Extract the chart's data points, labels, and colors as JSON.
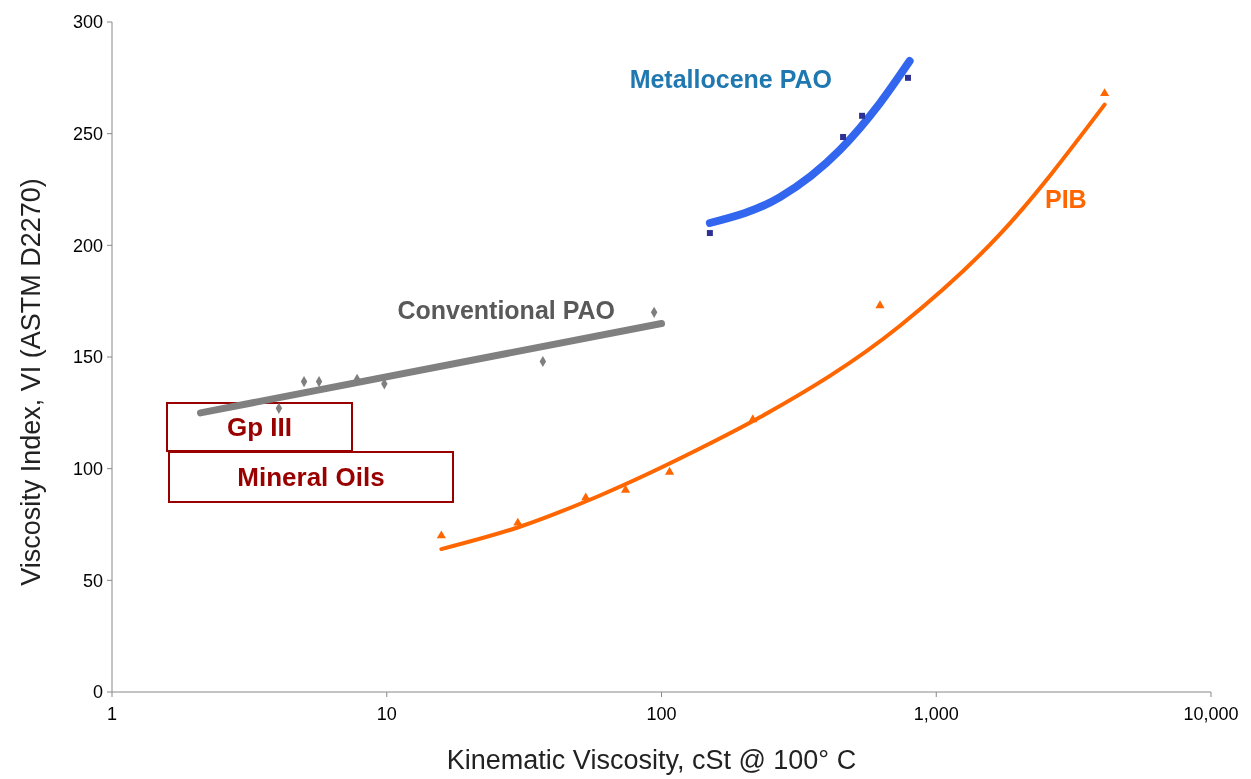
{
  "chart_data": {
    "type": "scatter",
    "xlabel": "Kinematic Viscosity, cSt @ 100° C",
    "ylabel": "Viscosity Index, VI (ASTM D2270)",
    "log": "x",
    "xlim": [
      1,
      10000
    ],
    "xticks": [
      1,
      10,
      100,
      {
        "value": 1000,
        "label": "1,000"
      },
      {
        "value": 10000,
        "label": "10,000"
      }
    ],
    "ylim": [
      0,
      300
    ],
    "yticks": [
      0,
      50,
      100,
      150,
      200,
      250,
      300
    ],
    "grid": false,
    "legend": false,
    "series": [
      {
        "type": "line",
        "color": "#3366ee",
        "marker": "none",
        "x": [
          150,
          270,
          446,
          624,
          800
        ],
        "values": [
          210,
          221.6,
          242.7,
          263.7,
          282.5
        ]
      },
      {
        "name": "Metallocene PAO",
        "color": "#2e3192",
        "marker": "square",
        "x": [
          150,
          458,
          537,
          789
        ],
        "values": [
          205.5,
          248.5,
          258,
          275
        ]
      },
      {
        "type": "line",
        "color": "#808080",
        "marker": "none",
        "x": [
          2.1,
          100
        ],
        "values": [
          125,
          165
        ]
      },
      {
        "name": "Conventional PAO",
        "color": "#7f7f7f",
        "marker": "diamond",
        "x": [
          4.05,
          5.0,
          5.67,
          7.8,
          9.8,
          37,
          94
        ],
        "values": [
          127,
          139,
          139,
          140,
          138,
          148,
          170
        ]
      },
      {
        "type": "line",
        "color": "#ff6600",
        "marker": "none",
        "x": [
          15.8,
          30.5,
          59.7,
          138,
          228,
          738,
          1706,
          4100
        ],
        "values": [
          64,
          74,
          88,
          109,
          123,
          164,
          205,
          263
        ]
      },
      {
        "name": "PIB",
        "color": "#ff6600",
        "marker": "triangle",
        "x": [
          15.8,
          30,
          53,
          74,
          107,
          215,
          624,
          4100
        ],
        "values": [
          70,
          75.7,
          87,
          90.4,
          98.5,
          122,
          173,
          268
        ]
      }
    ],
    "annotations": [
      "Gp III",
      "Mineral Oils"
    ]
  }
}
